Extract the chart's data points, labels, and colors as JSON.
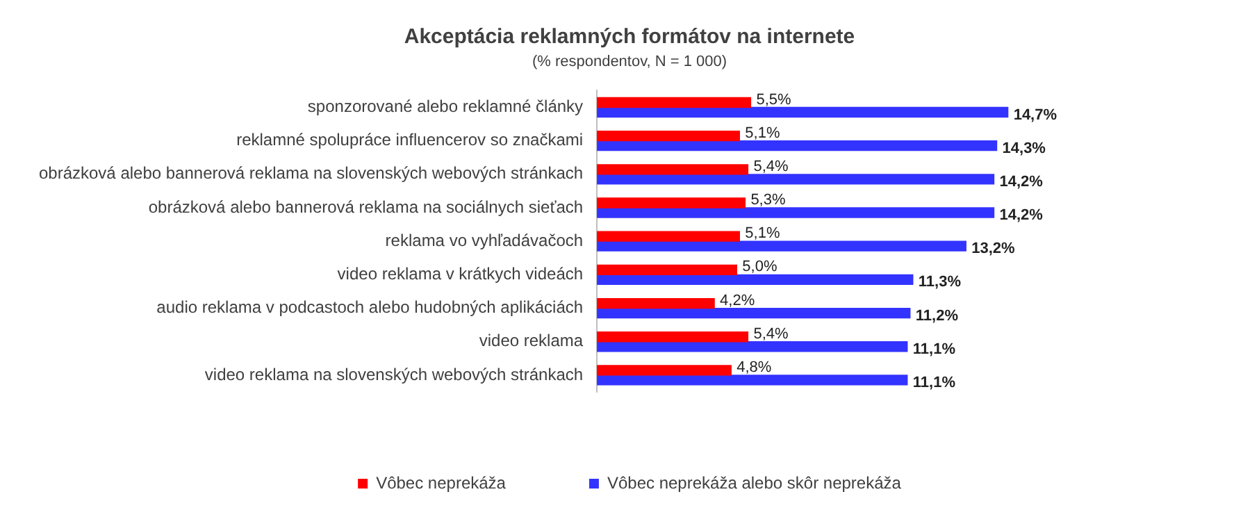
{
  "chart_data": {
    "type": "bar",
    "orientation": "horizontal",
    "title": "Akceptácia reklamných formátov na internete",
    "subtitle": "(% respondentov, N = 1 000)",
    "categories": [
      "sponzorované alebo reklamné články",
      "reklamné spolupráce influencerov so značkami",
      "obrázková alebo bannerová reklama na slovenských webových stránkach",
      "obrázková alebo bannerová reklama na sociálnych sieťach",
      "reklama vo vyhľadávačoch",
      "video reklama v krátkych videách",
      "audio reklama v podcastoch alebo hudobných aplikáciách",
      "video reklama",
      "video reklama na slovenských webových stránkach"
    ],
    "series": [
      {
        "name": "Vôbec neprekáža",
        "color": "#ff0000",
        "values": [
          5.5,
          5.1,
          5.4,
          5.3,
          5.1,
          5.0,
          4.2,
          5.4,
          4.8
        ],
        "value_labels": [
          "5,5%",
          "5,1%",
          "5,4%",
          "5,3%",
          "5,1%",
          "5,0%",
          "4,2%",
          "5,4%",
          "4,8%"
        ]
      },
      {
        "name": "Vôbec neprekáža alebo skôr neprekáža",
        "color": "#3333ff",
        "values": [
          14.7,
          14.3,
          14.2,
          14.2,
          13.2,
          11.3,
          11.2,
          11.1,
          11.1
        ],
        "value_labels": [
          "14,7%",
          "14,3%",
          "14,2%",
          "14,2%",
          "13,2%",
          "11,3%",
          "11,2%",
          "11,1%",
          "11,1%"
        ]
      }
    ],
    "legend": "bottom",
    "grid": false,
    "tick_labels": "y"
  }
}
